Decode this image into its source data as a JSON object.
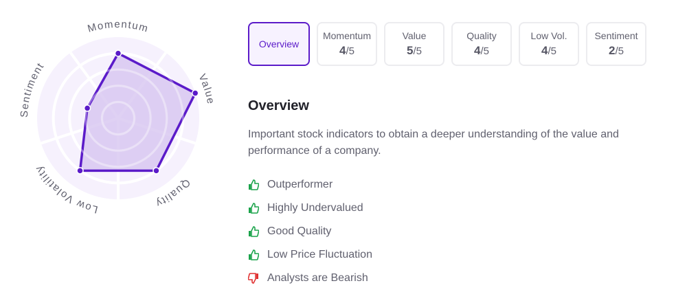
{
  "chart_data": {
    "type": "radar",
    "axes": [
      "Momentum",
      "Value",
      "Quality",
      "Low Volatility",
      "Sentiment"
    ],
    "values": [
      4,
      5,
      4,
      4,
      2
    ],
    "rlim": [
      0,
      5
    ],
    "levels": 5,
    "colors": {
      "line": "#5b1bc9",
      "fill": "#d7c6f0",
      "background": "#f6f1fd"
    }
  },
  "tabs": [
    {
      "label": "Overview",
      "active": true
    },
    {
      "label": "Momentum",
      "score": "4",
      "max": "/5"
    },
    {
      "label": "Value",
      "score": "5",
      "max": "/5"
    },
    {
      "label": "Quality",
      "score": "4",
      "max": "/5"
    },
    {
      "label": "Low Vol.",
      "score": "4",
      "max": "/5"
    },
    {
      "label": "Sentiment",
      "score": "2",
      "max": "/5"
    }
  ],
  "overview": {
    "title": "Overview",
    "description": "Important stock indicators to obtain a deeper understanding of the value and performance of a company.",
    "items": [
      {
        "text": "Outperformer",
        "icon": "thumbs-up-icon",
        "color": "#1aa34a"
      },
      {
        "text": "Highly Undervalued",
        "icon": "thumbs-up-icon",
        "color": "#1aa34a"
      },
      {
        "text": "Good Quality",
        "icon": "thumbs-up-icon",
        "color": "#1aa34a"
      },
      {
        "text": "Low Price Fluctuation",
        "icon": "thumbs-up-icon",
        "color": "#1aa34a"
      },
      {
        "text": "Analysts are Bearish",
        "icon": "thumbs-down-icon",
        "color": "#e03131"
      }
    ]
  }
}
